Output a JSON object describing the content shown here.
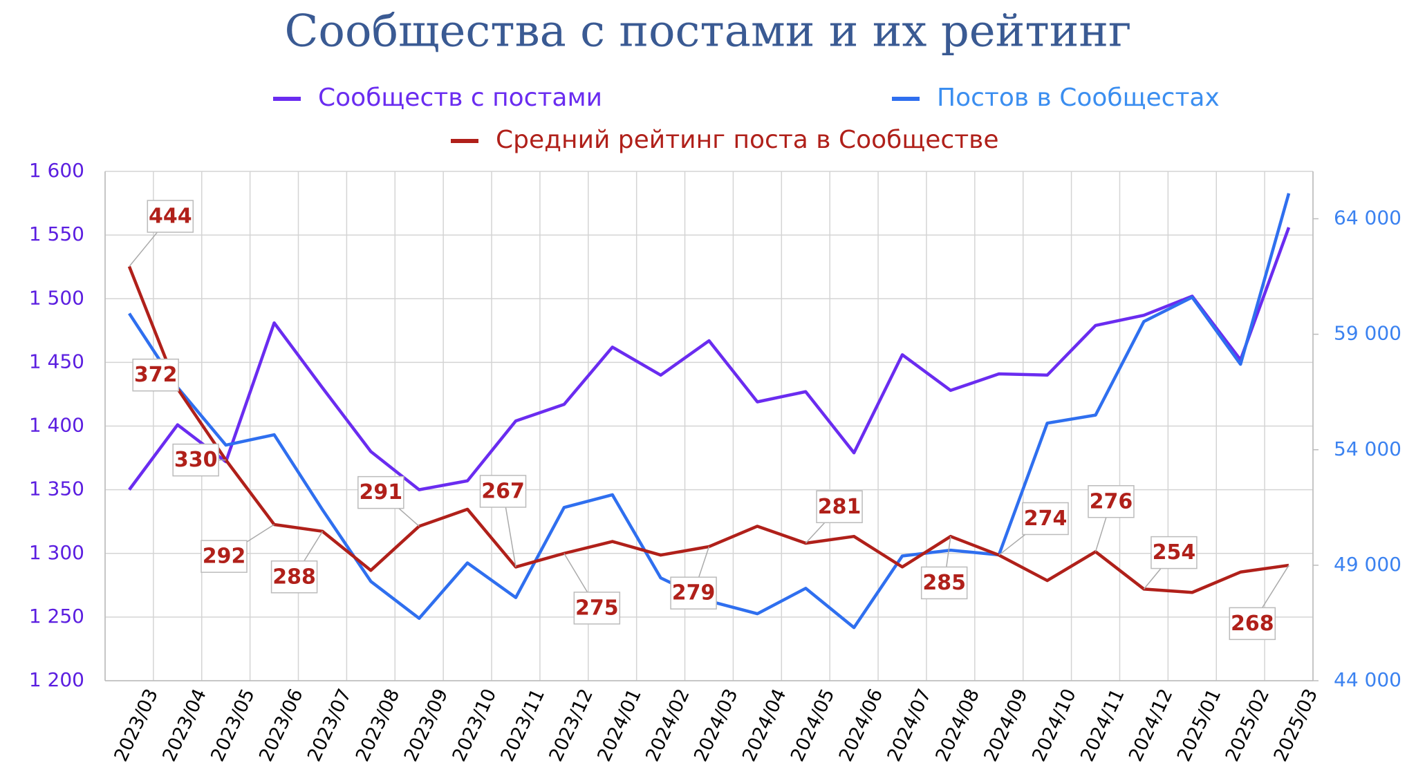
{
  "chart_data": {
    "type": "line",
    "title": "Сообщества с постами и их рейтинг",
    "categories": [
      "2023/03",
      "2023/04",
      "2023/05",
      "2023/06",
      "2023/07",
      "2023/08",
      "2023/09",
      "2023/10",
      "2023/11",
      "2023/12",
      "2024/01",
      "2024/02",
      "2024/03",
      "2024/04",
      "2024/05",
      "2024/06",
      "2024/07",
      "2024/08",
      "2024/09",
      "2024/10",
      "2024/11",
      "2024/12",
      "2025/01",
      "2025/02",
      "2025/03"
    ],
    "series": [
      {
        "name": "Сообществ с постами",
        "color": "#6a2cf0",
        "axis": "y",
        "values": [
          1350,
          1401,
          1372,
          1481,
          1430,
          1380,
          1350,
          1357,
          1404,
          1417,
          1462,
          1440,
          1467,
          1419,
          1427,
          1379,
          1456,
          1428,
          1441,
          1440,
          1479,
          1487,
          1502,
          1452,
          1556
        ]
      },
      {
        "name": "Постов в Сообщестах",
        "color": "#2f6fef",
        "axis": "y2",
        "values": [
          59900,
          56700,
          54200,
          54650,
          51400,
          48300,
          46700,
          49100,
          47600,
          51500,
          52050,
          48450,
          47450,
          46900,
          48000,
          46300,
          49400,
          49650,
          49450,
          55150,
          55500,
          59550,
          60600,
          57700,
          65100
        ]
      },
      {
        "name": "Средний рейтинг поста в Сообществе",
        "color": "#b0201a",
        "axis": "y3",
        "values": [
          444,
          372,
          330,
          292,
          288,
          265,
          291,
          301,
          267,
          275,
          282,
          274,
          279,
          291,
          281,
          285,
          267,
          285,
          274,
          259,
          276,
          254,
          252,
          264,
          268
        ],
        "value_labels": [
          "444",
          "372",
          "330",
          "292",
          "288",
          null,
          "291",
          null,
          "267",
          "275",
          null,
          null,
          "279",
          null,
          "281",
          null,
          null,
          "285",
          "274",
          null,
          "276",
          "254",
          null,
          null,
          "268"
        ]
      }
    ],
    "ylim": [
      1200,
      1600
    ],
    "yticks": [
      {
        "value": 1200,
        "label": "1 200"
      },
      {
        "value": 1250,
        "label": "1 250"
      },
      {
        "value": 1300,
        "label": "1 300"
      },
      {
        "value": 1350,
        "label": "1 350"
      },
      {
        "value": 1400,
        "label": "1 400"
      },
      {
        "value": 1450,
        "label": "1 450"
      },
      {
        "value": 1500,
        "label": "1 500"
      },
      {
        "value": 1550,
        "label": "1 550"
      },
      {
        "value": 1600,
        "label": "1 600"
      }
    ],
    "y2lim": [
      44000,
      66050
    ],
    "y2ticks": [
      {
        "value": 44000,
        "label": "44 000"
      },
      {
        "value": 49000,
        "label": "49 000"
      },
      {
        "value": 54000,
        "label": "54 000"
      },
      {
        "value": 59000,
        "label": "59 000"
      },
      {
        "value": 64000,
        "label": "64 000"
      }
    ],
    "y3lim": [
      200,
      500
    ],
    "grid": true
  }
}
